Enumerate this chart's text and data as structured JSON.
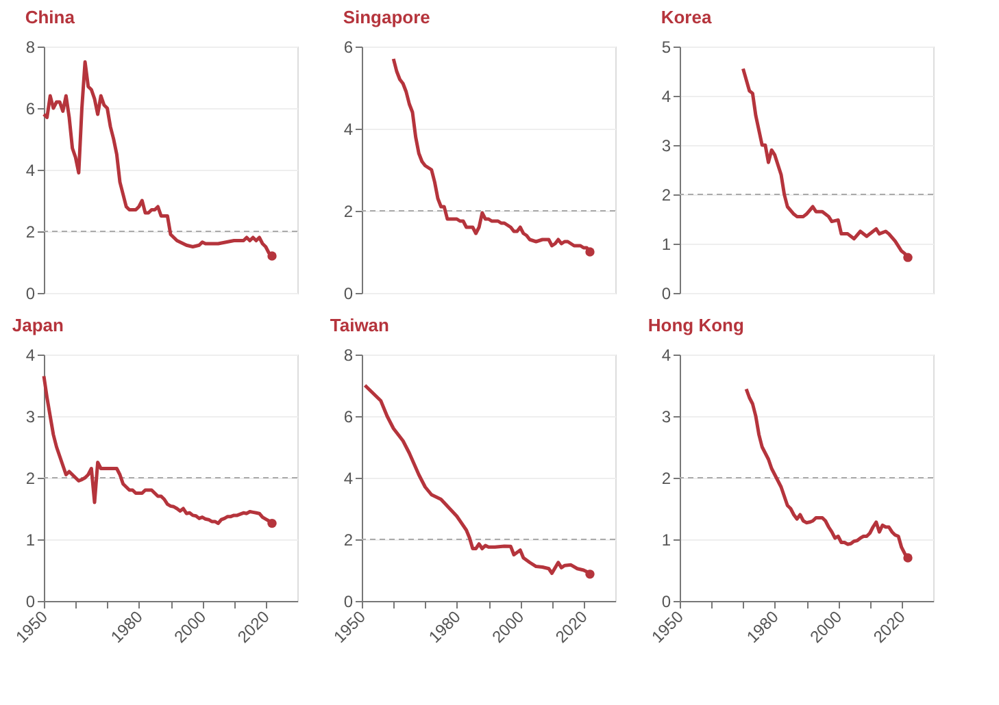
{
  "chart_data": [
    {
      "type": "line",
      "title": "China",
      "x": [
        1950,
        1951,
        1952,
        1953,
        1954,
        1955,
        1956,
        1957,
        1958,
        1959,
        1960,
        1961,
        1962,
        1963,
        1964,
        1965,
        1966,
        1967,
        1968,
        1969,
        1970,
        1971,
        1972,
        1973,
        1974,
        1975,
        1976,
        1977,
        1978,
        1979,
        1980,
        1981,
        1982,
        1983,
        1984,
        1985,
        1986,
        1987,
        1988,
        1989,
        1990,
        1991,
        1992,
        1993,
        1994,
        1995,
        1997,
        1999,
        2000,
        2001,
        2005,
        2010,
        2013,
        2014,
        2015,
        2016,
        2017,
        2018,
        2019,
        2020,
        2021,
        2022
      ],
      "series": [
        {
          "color": "#b5343c",
          "values": [
            5.8,
            5.7,
            6.4,
            6.0,
            6.2,
            6.2,
            5.9,
            6.4,
            5.7,
            4.7,
            4.4,
            3.9,
            6.0,
            7.5,
            6.7,
            6.6,
            6.3,
            5.8,
            6.4,
            6.1,
            6.0,
            5.4,
            5.0,
            4.5,
            3.6,
            3.2,
            2.8,
            2.7,
            2.7,
            2.7,
            2.8,
            3.0,
            2.6,
            2.6,
            2.7,
            2.7,
            2.8,
            2.5,
            2.5,
            2.5,
            1.9,
            1.8,
            1.7,
            1.65,
            1.6,
            1.55,
            1.5,
            1.55,
            1.65,
            1.6,
            1.6,
            1.7,
            1.7,
            1.8,
            1.7,
            1.8,
            1.7,
            1.8,
            1.6,
            1.5,
            1.3,
            1.2
          ]
        },
        {
          "type": "scatter",
          "color": "#b5343c",
          "values": [
            null,
            null,
            null,
            null,
            null,
            null,
            null,
            null,
            null,
            null,
            null,
            null,
            null,
            null,
            null,
            null,
            null,
            null,
            null,
            null,
            null,
            null,
            null,
            null,
            null,
            null,
            null,
            null,
            null,
            null,
            null,
            null,
            null,
            null,
            null,
            null,
            null,
            null,
            null,
            null,
            null,
            null,
            null,
            null,
            null,
            null,
            null,
            null,
            null,
            null,
            null,
            null,
            null,
            null,
            null,
            null,
            null,
            null,
            null,
            null,
            null,
            1.2
          ]
        }
      ],
      "xlim": [
        1950,
        2030
      ],
      "ylim": [
        0,
        8
      ],
      "yticks": [
        0,
        2,
        4,
        6,
        8
      ],
      "grid": "y",
      "tick_labels": "y",
      "line_style": "solid",
      "ref_lines": [
        {
          "axis": "y",
          "value": 2,
          "color": "#aaaaaa",
          "line_style": "dashed"
        }
      ]
    },
    {
      "type": "line",
      "title": "Singapore",
      "x": [
        1960,
        1961,
        1962,
        1963,
        1964,
        1965,
        1966,
        1967,
        1968,
        1969,
        1970,
        1971,
        1972,
        1973,
        1974,
        1975,
        1976,
        1977,
        1978,
        1980,
        1981,
        1982,
        1983,
        1984,
        1985,
        1986,
        1987,
        1988,
        1989,
        1990,
        1991,
        1992,
        1993,
        1994,
        1995,
        1996,
        1997,
        1998,
        1999,
        2000,
        2001,
        2002,
        2003,
        2005,
        2007,
        2009,
        2010,
        2011,
        2012,
        2013,
        2014,
        2015,
        2016,
        2017,
        2018,
        2019,
        2020,
        2021,
        2022
      ],
      "series": [
        {
          "color": "#b5343c",
          "values": [
            5.7,
            5.4,
            5.2,
            5.1,
            4.9,
            4.6,
            4.4,
            3.8,
            3.4,
            3.2,
            3.1,
            3.05,
            3.0,
            2.7,
            2.3,
            2.1,
            2.1,
            1.8,
            1.8,
            1.8,
            1.75,
            1.75,
            1.6,
            1.6,
            1.6,
            1.45,
            1.6,
            1.95,
            1.8,
            1.8,
            1.75,
            1.75,
            1.75,
            1.7,
            1.7,
            1.65,
            1.6,
            1.5,
            1.5,
            1.6,
            1.45,
            1.4,
            1.3,
            1.25,
            1.3,
            1.3,
            1.15,
            1.2,
            1.3,
            1.2,
            1.25,
            1.25,
            1.2,
            1.15,
            1.15,
            1.15,
            1.1,
            1.1,
            1.0
          ]
        },
        {
          "type": "scatter",
          "color": "#b5343c",
          "values": [
            null,
            null,
            null,
            null,
            null,
            null,
            null,
            null,
            null,
            null,
            null,
            null,
            null,
            null,
            null,
            null,
            null,
            null,
            null,
            null,
            null,
            null,
            null,
            null,
            null,
            null,
            null,
            null,
            null,
            null,
            null,
            null,
            null,
            null,
            null,
            null,
            null,
            null,
            null,
            null,
            null,
            null,
            null,
            null,
            null,
            null,
            null,
            null,
            null,
            null,
            null,
            null,
            null,
            null,
            null,
            null,
            null,
            null,
            1.0
          ]
        }
      ],
      "xlim": [
        1950,
        2030
      ],
      "ylim": [
        0,
        6
      ],
      "yticks": [
        0,
        2,
        4,
        6
      ],
      "grid": "y",
      "tick_labels": "y",
      "line_style": "solid",
      "ref_lines": [
        {
          "axis": "y",
          "value": 2,
          "color": "#aaaaaa",
          "line_style": "dashed"
        }
      ]
    },
    {
      "type": "line",
      "title": "Korea",
      "x": [
        1970,
        1972,
        1973,
        1974,
        1976,
        1977,
        1978,
        1979,
        1980,
        1982,
        1983,
        1984,
        1986,
        1987,
        1989,
        1990,
        1992,
        1993,
        1995,
        1997,
        1998,
        2000,
        2001,
        2003,
        2005,
        2007,
        2009,
        2011,
        2012,
        2013,
        2015,
        2016,
        2018,
        2019,
        2020,
        2021,
        2022
      ],
      "series": [
        {
          "color": "#b5343c",
          "values": [
            4.55,
            4.1,
            4.05,
            3.6,
            3.0,
            3.0,
            2.65,
            2.9,
            2.8,
            2.4,
            2.0,
            1.75,
            1.6,
            1.55,
            1.55,
            1.6,
            1.75,
            1.65,
            1.65,
            1.55,
            1.45,
            1.48,
            1.2,
            1.2,
            1.1,
            1.25,
            1.15,
            1.25,
            1.3,
            1.2,
            1.25,
            1.2,
            1.05,
            0.95,
            0.85,
            0.8,
            0.72
          ]
        },
        {
          "type": "scatter",
          "color": "#b5343c",
          "values": [
            null,
            null,
            null,
            null,
            null,
            null,
            null,
            null,
            null,
            null,
            null,
            null,
            null,
            null,
            null,
            null,
            null,
            null,
            null,
            null,
            null,
            null,
            null,
            null,
            null,
            null,
            null,
            null,
            null,
            null,
            null,
            null,
            null,
            null,
            null,
            null,
            0.72
          ]
        }
      ],
      "xlim": [
        1950,
        2030
      ],
      "ylim": [
        0,
        5
      ],
      "yticks": [
        0,
        1,
        2,
        3,
        4,
        5
      ],
      "grid": "y",
      "tick_labels": "y",
      "line_style": "solid",
      "ref_lines": [
        {
          "axis": "y",
          "value": 2,
          "color": "#aaaaaa",
          "line_style": "dashed"
        }
      ]
    },
    {
      "type": "line",
      "title": "Japan",
      "x": [
        1950,
        1951,
        1952,
        1953,
        1954,
        1955,
        1956,
        1957,
        1958,
        1959,
        1960,
        1961,
        1962,
        1963,
        1964,
        1965,
        1966,
        1967,
        1968,
        1969,
        1970,
        1971,
        1972,
        1973,
        1974,
        1975,
        1976,
        1977,
        1978,
        1979,
        1980,
        1981,
        1982,
        1983,
        1984,
        1985,
        1986,
        1987,
        1988,
        1989,
        1990,
        1991,
        1992,
        1993,
        1994,
        1995,
        1996,
        1997,
        1998,
        1999,
        2000,
        2001,
        2002,
        2003,
        2004,
        2005,
        2006,
        2007,
        2008,
        2009,
        2010,
        2011,
        2012,
        2013,
        2014,
        2015,
        2016,
        2017,
        2018,
        2019,
        2020,
        2021,
        2022
      ],
      "series": [
        {
          "color": "#b5343c",
          "values": [
            3.65,
            3.3,
            3.0,
            2.7,
            2.5,
            2.35,
            2.2,
            2.05,
            2.1,
            2.05,
            2.0,
            1.95,
            1.97,
            2.0,
            2.05,
            2.15,
            1.6,
            2.25,
            2.15,
            2.15,
            2.15,
            2.15,
            2.15,
            2.15,
            2.05,
            1.9,
            1.85,
            1.8,
            1.8,
            1.75,
            1.75,
            1.75,
            1.8,
            1.8,
            1.8,
            1.75,
            1.7,
            1.7,
            1.65,
            1.57,
            1.54,
            1.53,
            1.5,
            1.46,
            1.5,
            1.42,
            1.43,
            1.39,
            1.38,
            1.34,
            1.36,
            1.33,
            1.32,
            1.29,
            1.29,
            1.26,
            1.32,
            1.34,
            1.37,
            1.37,
            1.39,
            1.39,
            1.41,
            1.43,
            1.42,
            1.45,
            1.44,
            1.43,
            1.42,
            1.36,
            1.33,
            1.3,
            1.26
          ]
        },
        {
          "type": "scatter",
          "color": "#b5343c",
          "values": [
            null,
            null,
            null,
            null,
            null,
            null,
            null,
            null,
            null,
            null,
            null,
            null,
            null,
            null,
            null,
            null,
            null,
            null,
            null,
            null,
            null,
            null,
            null,
            null,
            null,
            null,
            null,
            null,
            null,
            null,
            null,
            null,
            null,
            null,
            null,
            null,
            null,
            null,
            null,
            null,
            null,
            null,
            null,
            null,
            null,
            null,
            null,
            null,
            null,
            null,
            null,
            null,
            null,
            null,
            null,
            null,
            null,
            null,
            null,
            null,
            null,
            null,
            null,
            null,
            null,
            null,
            null,
            null,
            null,
            null,
            null,
            null,
            1.26
          ]
        }
      ],
      "xlim": [
        1950,
        2030
      ],
      "xticks": [
        1950,
        {
          "value": 1960,
          "label": null
        },
        {
          "value": 1970,
          "label": null
        },
        1980,
        {
          "value": 1990,
          "label": null
        },
        2000,
        {
          "value": 2010,
          "label": null
        },
        2020
      ],
      "ylim": [
        0,
        4
      ],
      "yticks": [
        0,
        1,
        2,
        3,
        4
      ],
      "grid": "y",
      "line_style": "solid",
      "ref_lines": [
        {
          "axis": "y",
          "value": 2,
          "color": "#aaaaaa",
          "line_style": "dashed"
        }
      ]
    },
    {
      "type": "line",
      "title": "Taiwan",
      "x": [
        1951,
        1953,
        1956,
        1958,
        1960,
        1963,
        1965,
        1968,
        1970,
        1972,
        1975,
        1980,
        1983,
        1984,
        1985,
        1986,
        1987,
        1988,
        1989,
        1990,
        1992,
        1995,
        1997,
        1998,
        2000,
        2001,
        2003,
        2005,
        2007,
        2009,
        2010,
        2012,
        2013,
        2014,
        2016,
        2018,
        2020,
        2021,
        2022
      ],
      "series": [
        {
          "color": "#b5343c",
          "values": [
            7.0,
            6.8,
            6.5,
            6.0,
            5.6,
            5.2,
            4.8,
            4.1,
            3.7,
            3.45,
            3.3,
            2.75,
            2.3,
            2.05,
            1.7,
            1.7,
            1.85,
            1.7,
            1.8,
            1.75,
            1.75,
            1.78,
            1.77,
            1.5,
            1.65,
            1.4,
            1.25,
            1.12,
            1.1,
            1.05,
            0.9,
            1.25,
            1.08,
            1.15,
            1.17,
            1.05,
            1.0,
            0.95,
            0.87
          ]
        },
        {
          "type": "scatter",
          "color": "#b5343c",
          "values": [
            null,
            null,
            null,
            null,
            null,
            null,
            null,
            null,
            null,
            null,
            null,
            null,
            null,
            null,
            null,
            null,
            null,
            null,
            null,
            null,
            null,
            null,
            null,
            null,
            null,
            null,
            null,
            null,
            null,
            null,
            null,
            null,
            null,
            null,
            null,
            null,
            null,
            null,
            0.87
          ]
        }
      ],
      "xlim": [
        1950,
        2030
      ],
      "xticks": [
        1950,
        {
          "value": 1960,
          "label": null
        },
        {
          "value": 1970,
          "label": null
        },
        1980,
        {
          "value": 1990,
          "label": null
        },
        2000,
        {
          "value": 2010,
          "label": null
        },
        2020
      ],
      "ylim": [
        0,
        8
      ],
      "yticks": [
        0,
        2,
        4,
        6,
        8
      ],
      "grid": "y",
      "line_style": "solid",
      "ref_lines": [
        {
          "axis": "y",
          "value": 2,
          "color": "#aaaaaa",
          "line_style": "dashed"
        }
      ]
    },
    {
      "type": "line",
      "title": "Hong Kong",
      "x": [
        1971,
        1972,
        1973,
        1974,
        1975,
        1976,
        1977,
        1978,
        1979,
        1980,
        1981,
        1982,
        1983,
        1984,
        1985,
        1986,
        1987,
        1988,
        1989,
        1990,
        1991,
        1992,
        1993,
        1994,
        1995,
        1996,
        1997,
        1998,
        1999,
        2000,
        2001,
        2002,
        2003,
        2004,
        2005,
        2006,
        2007,
        2008,
        2009,
        2010,
        2011,
        2012,
        2013,
        2014,
        2015,
        2016,
        2017,
        2018,
        2019,
        2020,
        2021,
        2022
      ],
      "series": [
        {
          "color": "#b5343c",
          "values": [
            3.44,
            3.3,
            3.2,
            3.0,
            2.7,
            2.5,
            2.4,
            2.3,
            2.15,
            2.05,
            1.95,
            1.85,
            1.7,
            1.55,
            1.5,
            1.4,
            1.33,
            1.4,
            1.3,
            1.27,
            1.28,
            1.3,
            1.35,
            1.35,
            1.35,
            1.3,
            1.2,
            1.12,
            1.02,
            1.05,
            0.95,
            0.95,
            0.92,
            0.93,
            0.97,
            0.98,
            1.02,
            1.05,
            1.05,
            1.1,
            1.2,
            1.28,
            1.12,
            1.23,
            1.2,
            1.2,
            1.12,
            1.07,
            1.05,
            0.87,
            0.77,
            0.7
          ]
        },
        {
          "type": "scatter",
          "color": "#b5343c",
          "values": [
            null,
            null,
            null,
            null,
            null,
            null,
            null,
            null,
            null,
            null,
            null,
            null,
            null,
            null,
            null,
            null,
            null,
            null,
            null,
            null,
            null,
            null,
            null,
            null,
            null,
            null,
            null,
            null,
            null,
            null,
            null,
            null,
            null,
            null,
            null,
            null,
            null,
            null,
            null,
            null,
            null,
            null,
            null,
            null,
            null,
            null,
            null,
            null,
            null,
            null,
            null,
            0.7
          ]
        }
      ],
      "xlim": [
        1950,
        2030
      ],
      "xticks": [
        1950,
        {
          "value": 1960,
          "label": null
        },
        {
          "value": 1970,
          "label": null
        },
        1980,
        {
          "value": 1990,
          "label": null
        },
        2000,
        {
          "value": 2010,
          "label": null
        },
        2020
      ],
      "ylim": [
        0,
        4
      ],
      "yticks": [
        0,
        1,
        2,
        3,
        4
      ],
      "grid": "y",
      "line_style": "solid",
      "ref_lines": [
        {
          "axis": "y",
          "value": 2,
          "color": "#aaaaaa",
          "line_style": "dashed"
        }
      ]
    }
  ]
}
